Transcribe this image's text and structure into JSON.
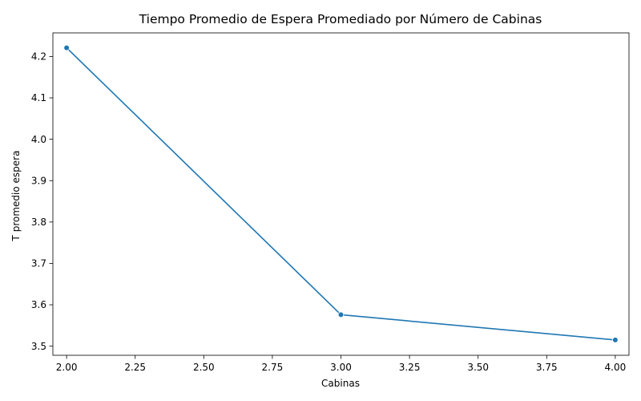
{
  "chart_data": {
    "type": "line",
    "title": "Tiempo Promedio de Espera Promediado por Número de Cabinas",
    "xlabel": "Cabinas",
    "ylabel": "T promedio espera",
    "xlim": [
      1.95,
      4.05
    ],
    "ylim": [
      3.478,
      4.257
    ],
    "x_ticks": [
      2.0,
      2.25,
      2.5,
      2.75,
      3.0,
      3.25,
      3.5,
      3.75,
      4.0
    ],
    "x_tick_labels": [
      "2.00",
      "2.25",
      "2.50",
      "2.75",
      "3.00",
      "3.25",
      "3.50",
      "3.75",
      "4.00"
    ],
    "y_ticks": [
      3.5,
      3.6,
      3.7,
      3.8,
      3.9,
      4.0,
      4.1,
      4.2
    ],
    "y_tick_labels": [
      "3.5",
      "3.6",
      "3.7",
      "3.8",
      "3.9",
      "4.0",
      "4.1",
      "4.2"
    ],
    "grid": false,
    "legend": "none",
    "marker": "circle",
    "color": "#1f77b4",
    "series": [
      {
        "x": [
          2,
          3,
          4
        ],
        "values": [
          4.221,
          3.576,
          3.515
        ]
      }
    ]
  }
}
